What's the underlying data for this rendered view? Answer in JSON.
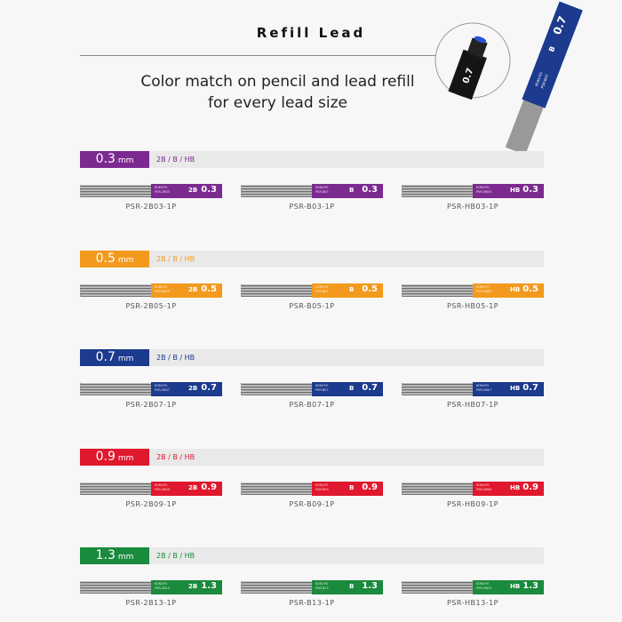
{
  "title": "Refill Lead",
  "subtitle_line1": "Color match on pencil and lead refill",
  "subtitle_line2": "for every lead size",
  "hero": {
    "cap_label": "0.7",
    "tube_size": "0.7",
    "tube_grade": "B",
    "tube_brand": "KOKUYO",
    "tube_code": "PSR-B07",
    "color": "#1c3a8e"
  },
  "unit": "mm",
  "grades_text": "2B / B / HB",
  "brand": "KOKUYO",
  "sections": [
    {
      "size": "0.3",
      "color": "#7b2a8f",
      "items": [
        {
          "grade": "2B",
          "label_code": "PSR-2B03",
          "code": "PSR-2B03-1P"
        },
        {
          "grade": "B",
          "label_code": "PSR-B03",
          "code": "PSR-B03-1P"
        },
        {
          "grade": "HB",
          "label_code": "PSR-HB03",
          "code": "PSR-HB03-1P"
        }
      ]
    },
    {
      "size": "0.5",
      "color": "#f39a1e",
      "items": [
        {
          "grade": "2B",
          "label_code": "PSR-2B05",
          "code": "PSR-2B05-1P"
        },
        {
          "grade": "B",
          "label_code": "PSR-B05",
          "code": "PSR-B05-1P"
        },
        {
          "grade": "HB",
          "label_code": "PSR-HB05",
          "code": "PSR-HB05-1P"
        }
      ]
    },
    {
      "size": "0.7",
      "color": "#1c3a8e",
      "items": [
        {
          "grade": "2B",
          "label_code": "PSR-2B07",
          "code": "PSR-2B07-1P"
        },
        {
          "grade": "B",
          "label_code": "PSR-B07",
          "code": "PSR-B07-1P"
        },
        {
          "grade": "HB",
          "label_code": "PSR-HB07",
          "code": "PSR-HB07-1P"
        }
      ]
    },
    {
      "size": "0.9",
      "color": "#e0182d",
      "items": [
        {
          "grade": "2B",
          "label_code": "PSR-2B09",
          "code": "PSR-2B09-1P"
        },
        {
          "grade": "B",
          "label_code": "PSR-B09",
          "code": "PSR-B09-1P"
        },
        {
          "grade": "HB",
          "label_code": "PSR-HB09",
          "code": "PSR-HB09-1P"
        }
      ]
    },
    {
      "size": "1.3",
      "color": "#1a8a3c",
      "items": [
        {
          "grade": "2B",
          "label_code": "PSR-2B13",
          "code": "PSR-2B13-1P"
        },
        {
          "grade": "B",
          "label_code": "PSR-B13",
          "code": "PSR-B13-1P"
        },
        {
          "grade": "HB",
          "label_code": "PSR-HB13",
          "code": "PSR-HB13-1P"
        }
      ]
    }
  ]
}
